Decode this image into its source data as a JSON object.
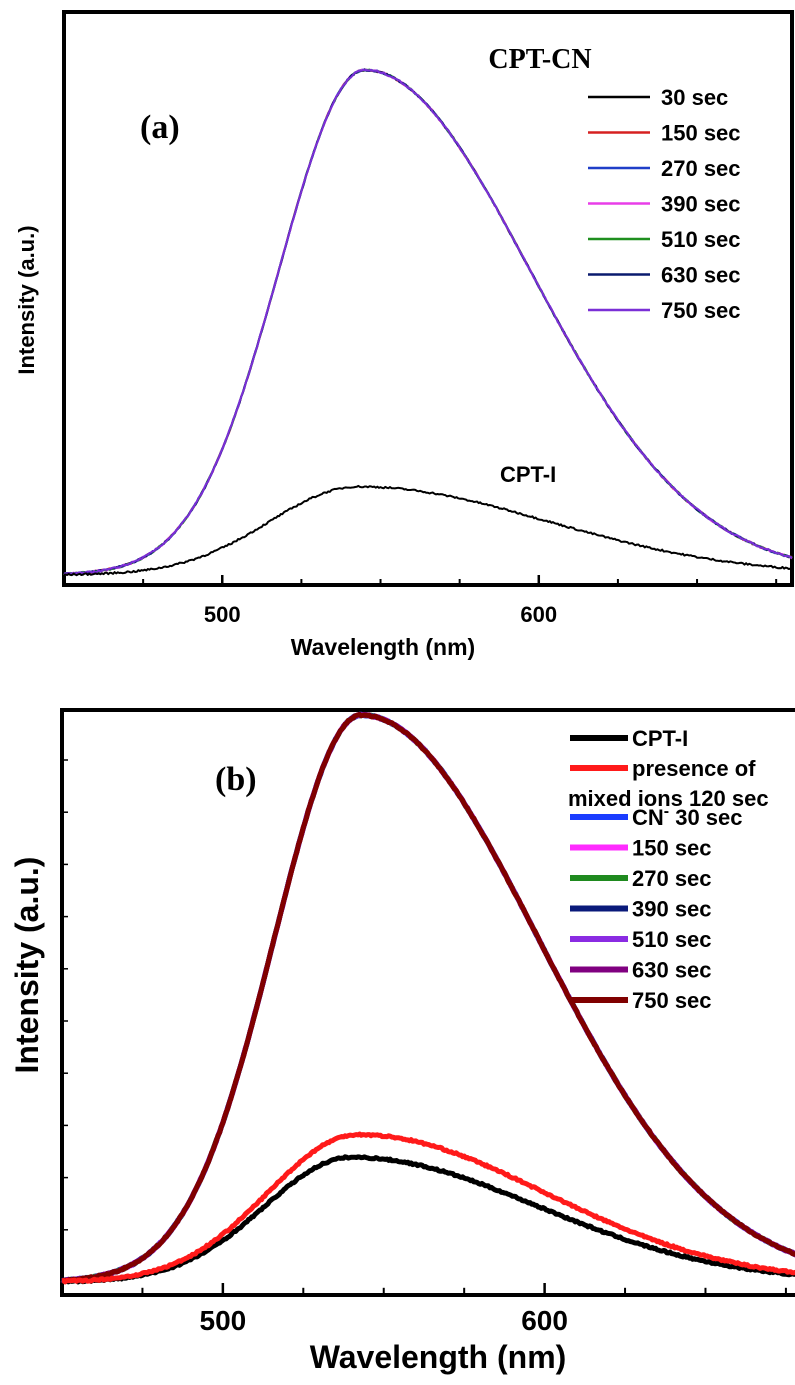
{
  "chart_data": [
    {
      "type": "line",
      "panel_label": "(a)",
      "title": "CPT-CN",
      "xlabel": "Wavelength (nm)",
      "ylabel": "Intensity (a.u.)",
      "xlim": [
        450,
        680
      ],
      "ylim": [
        0,
        100
      ],
      "xticks": [
        500,
        600
      ],
      "xtick_labels": [
        "500",
        "600"
      ],
      "y_tick_labels_shown": false,
      "grid": false,
      "legend_position": "top-right",
      "annotations": [
        {
          "text": "CPT-I",
          "x": 590,
          "y": 20
        }
      ],
      "curves": {
        "high": {
          "peak_x": 545,
          "peak_y": 100,
          "baseline_y": 0,
          "sigma_left": 27,
          "sigma_right": 52,
          "y_at_right_edge": 9.5
        },
        "low": {
          "peak_x": 543,
          "peak_y": 17.5,
          "baseline_y": 0,
          "sigma_left": 28,
          "sigma_right": 60
        }
      },
      "series": [
        {
          "name": "30 sec",
          "color": "#000000",
          "curve": "low"
        },
        {
          "name": "150 sec",
          "color": "#d62020",
          "curve": "high"
        },
        {
          "name": "270 sec",
          "color": "#1f3ec8",
          "curve": "high"
        },
        {
          "name": "390 sec",
          "color": "#e83ee8",
          "curve": "high"
        },
        {
          "name": "510 sec",
          "color": "#1f8f1f",
          "curve": "high"
        },
        {
          "name": "630 sec",
          "color": "#0a1a6e",
          "curve": "high"
        },
        {
          "name": "750 sec",
          "color": "#7a2fd6",
          "curve": "high"
        }
      ]
    },
    {
      "type": "line",
      "panel_label": "(b)",
      "xlabel": "Wavelength (nm)",
      "ylabel": "Intensity (a.u.)",
      "xlim": [
        450,
        680
      ],
      "ylim": [
        0,
        100
      ],
      "xticks": [
        500,
        600
      ],
      "xtick_labels": [
        "500",
        "600"
      ],
      "y_tick_labels_shown": false,
      "grid": false,
      "legend_position": "top-right",
      "curves": {
        "high": {
          "peak_x": 543,
          "peak_y": 100,
          "baseline_y": 0,
          "sigma_left": 27,
          "sigma_right": 55,
          "y_at_right_edge": 9
        },
        "low_black": {
          "peak_x": 540,
          "peak_y": 22,
          "baseline_y": 0,
          "sigma_left": 27,
          "sigma_right": 58
        },
        "low_red": {
          "peak_x": 542,
          "peak_y": 26,
          "baseline_y": 0,
          "sigma_left": 28,
          "sigma_right": 58
        }
      },
      "series": [
        {
          "name": "CPT-I",
          "color": "#000000",
          "curve": "low_black"
        },
        {
          "name": "presence of mixed ions 120 sec",
          "legend_lines": [
            "presence of",
            "mixed ions 120 sec"
          ],
          "color": "#ff1a1a",
          "curve": "low_red"
        },
        {
          "name": "CN- 30 sec",
          "legend_main": "CN",
          "legend_sup": "-",
          "legend_rest": " 30 sec",
          "color": "#1a3cff",
          "curve": "high"
        },
        {
          "name": "150 sec",
          "color": "#ff2bff",
          "curve": "high"
        },
        {
          "name": "270 sec",
          "color": "#1f8a1f",
          "curve": "high"
        },
        {
          "name": "390 sec",
          "color": "#0a1a7a",
          "curve": "high"
        },
        {
          "name": "510 sec",
          "color": "#8a2be2",
          "curve": "high"
        },
        {
          "name": "630 sec",
          "color": "#800080",
          "curve": "high"
        },
        {
          "name": "750 sec",
          "color": "#800000",
          "curve": "high"
        }
      ]
    }
  ]
}
